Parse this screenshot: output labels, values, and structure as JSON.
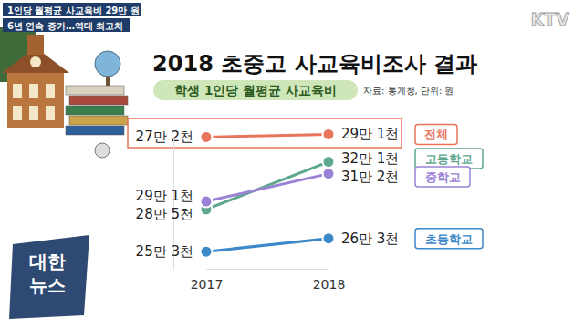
{
  "page": {
    "captions": [
      "1인당 월평균 사교육비 29만 원",
      "6년 연속 증가…역대 최고치"
    ],
    "channel": "KTV",
    "program": [
      "대한",
      "뉴스"
    ],
    "title": "2018 초중고 사교육비조사 결과",
    "subtitle": "학생 1인당 월평균 사교육비",
    "source": "자료: 통계청, 단위: 원"
  },
  "chart_data": [
    {
      "type": "line",
      "categories": [
        "2017",
        "2018"
      ],
      "series": [
        {
          "name": "전체",
          "color": "#e8745c",
          "values": [
            272000,
            291000
          ],
          "value_labels": [
            "27만 2천",
            "29만 1천"
          ]
        }
      ],
      "ylim": [
        200000,
        400000
      ],
      "tick_labels": false,
      "data_labels": true,
      "marker": "circle"
    },
    {
      "type": "line",
      "categories": [
        "2017",
        "2018"
      ],
      "series": [
        {
          "name": "고등학교",
          "color": "#5fa88e",
          "values": [
            285000,
            321000
          ],
          "value_labels": [
            "28만 5천",
            "32만 1천"
          ]
        },
        {
          "name": "중학교",
          "color": "#9a82d6",
          "values": [
            291000,
            312000
          ],
          "value_labels": [
            "29만 1천",
            "31만 2천"
          ]
        },
        {
          "name": "초등학교",
          "color": "#3d88c9",
          "values": [
            253000,
            263000
          ],
          "value_labels": [
            "25만 3천",
            "26만 3천"
          ]
        }
      ],
      "ylim": [
        240000,
        340000
      ],
      "tick_labels": "x",
      "data_labels": true,
      "marker": "circle"
    }
  ]
}
